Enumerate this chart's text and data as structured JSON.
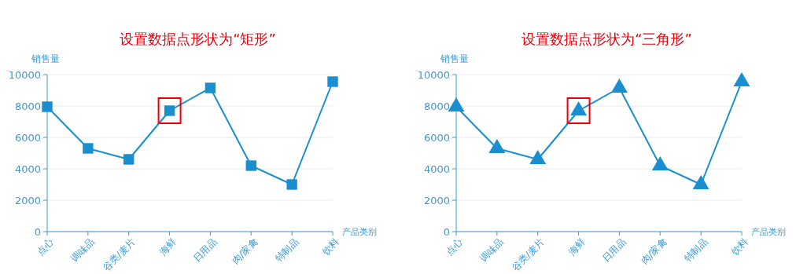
{
  "chart_data": [
    {
      "type": "line",
      "title": "设置数据点形状为“矩形”",
      "xlabel": "产品类别",
      "ylabel": "销售量",
      "categories": [
        "点心",
        "调味品",
        "谷类/麦片",
        "海鲜",
        "日用品",
        "肉/家禽",
        "特制品",
        "饮料"
      ],
      "series": [
        {
          "color": "#1a8fd0",
          "values": [
            7950,
            5300,
            4600,
            7700,
            9150,
            4200,
            3000,
            9550
          ]
        }
      ],
      "ylim": [
        0,
        10000
      ],
      "yticks": [
        0,
        2000,
        4000,
        6000,
        8000,
        10000
      ],
      "grid": "y",
      "marker": "square"
    },
    {
      "type": "line",
      "title": "设置数据点形状为“三角形”",
      "xlabel": "产品类别",
      "ylabel": "销售量",
      "categories": [
        "点心",
        "调味品",
        "谷类/麦片",
        "海鲜",
        "日用品",
        "肉/家禽",
        "特制品",
        "饮料"
      ],
      "series": [
        {
          "color": "#1a8fd0",
          "values": [
            7950,
            5300,
            4600,
            7700,
            9150,
            4200,
            3000,
            9550
          ]
        }
      ],
      "ylim": [
        0,
        10000
      ],
      "yticks": [
        0,
        2000,
        4000,
        6000,
        8000,
        10000
      ],
      "grid": "y",
      "marker": "triangle"
    }
  ]
}
